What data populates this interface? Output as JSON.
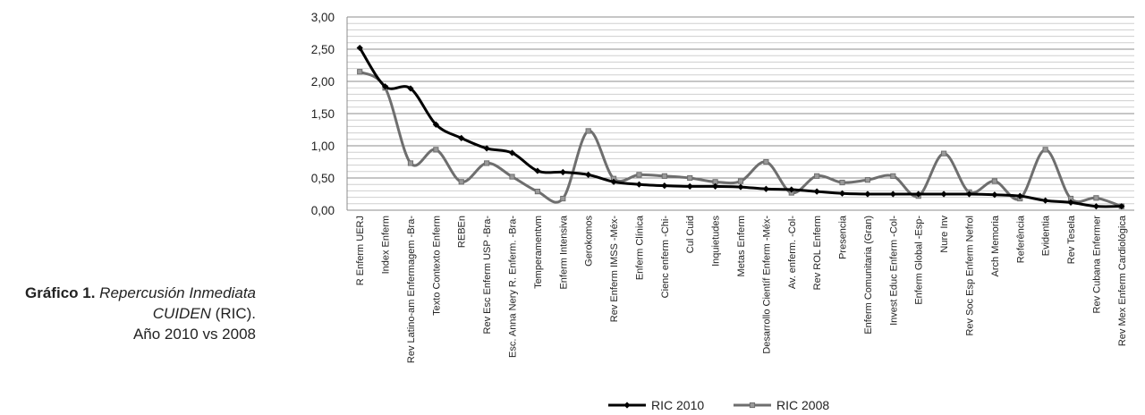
{
  "caption": {
    "bold": "Gráfico 1.",
    "italic": "Repercusión Inmediata CUIDEN",
    "tail": "(RIC).",
    "line3": "Año 2010 vs 2008"
  },
  "chart_data": {
    "type": "line",
    "categories": [
      "R Enferm UERJ",
      "Index Enferm",
      "Rev Latino-am Enfermagem -Bra-",
      "Texto Contexto Enferm",
      "REBEn",
      "Rev Esc Enferm USP -Bra-",
      "Esc. Anna Nery R. Enferm. -Bra-",
      "Temperamentvm",
      "Enferm Intensiva",
      "Gerokomos",
      "Rev Enferm IMSS -Méx-",
      "Enferm Clínica",
      "Cienc enferm -Chi-",
      "Cul Cuid",
      "Inquietudes",
      "Metas Enferm",
      "Desarrollo Científ Enferm -Méx-",
      "Av. enferm. -Col-",
      "Rev ROL Enferm",
      "Presencia",
      "Enferm Comunitaria (Gran)",
      "Invest Educ Enferm -Col-",
      "Enferm Global -Esp-",
      "Nure Inv",
      "Rev Soc Esp Enferm Nefrol",
      "Arch Memoria",
      "Referência",
      "Evidentia",
      "Rev Tesela",
      "Rev Cubana Enfermer",
      "Rev Mex Enferm Cardiológica"
    ],
    "series": [
      {
        "name": "RIC 2010",
        "color": "#000000",
        "marker": "diamond",
        "values": [
          2.52,
          1.92,
          1.89,
          1.33,
          1.12,
          0.96,
          0.89,
          0.61,
          0.59,
          0.55,
          0.44,
          0.4,
          0.38,
          0.37,
          0.37,
          0.36,
          0.33,
          0.32,
          0.29,
          0.26,
          0.25,
          0.25,
          0.25,
          0.25,
          0.25,
          0.24,
          0.22,
          0.15,
          0.12,
          0.06,
          0.06
        ]
      },
      {
        "name": "RIC 2008",
        "color": "#6e6e6e",
        "marker": "square",
        "values": [
          2.15,
          1.9,
          0.73,
          0.94,
          0.44,
          0.73,
          0.52,
          0.29,
          0.18,
          1.23,
          0.49,
          0.55,
          0.53,
          0.5,
          0.44,
          0.45,
          0.75,
          0.27,
          0.53,
          0.43,
          0.47,
          0.53,
          0.22,
          0.88,
          0.28,
          0.45,
          0.18,
          0.94,
          0.18,
          0.19,
          0.06
        ]
      }
    ],
    "yticks": [
      "0,00",
      "0,50",
      "1,00",
      "1,50",
      "2,00",
      "2,50",
      "3,00"
    ],
    "ylim": [
      0,
      3
    ],
    "grid": true,
    "legend": "bottom-center"
  }
}
